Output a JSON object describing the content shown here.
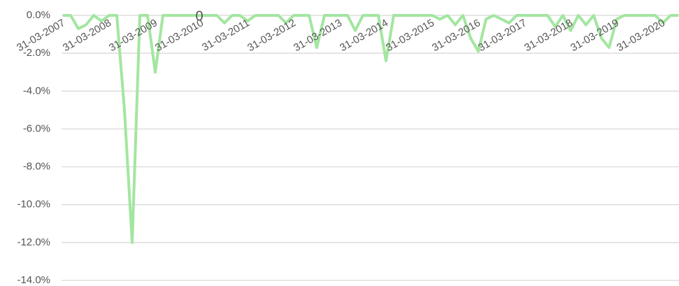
{
  "chart_data": {
    "type": "line",
    "annotation": "0",
    "categories": [
      "31-03-2007",
      null,
      null,
      null,
      null,
      null,
      "31-03-2008",
      null,
      null,
      null,
      null,
      null,
      "31-03-2009",
      null,
      null,
      null,
      null,
      null,
      "31-03-2010",
      null,
      null,
      null,
      null,
      null,
      "31-03-2011",
      null,
      null,
      null,
      null,
      null,
      "31-03-2012",
      null,
      null,
      null,
      null,
      null,
      "31-03-2013",
      null,
      null,
      null,
      null,
      null,
      "31-03-2014",
      null,
      null,
      null,
      null,
      null,
      "31-03-2015",
      null,
      null,
      null,
      null,
      null,
      "31-03-2016",
      null,
      null,
      null,
      null,
      null,
      "31-03-2017",
      null,
      null,
      null,
      null,
      null,
      "31-03-2018",
      null,
      null,
      null,
      null,
      null,
      "31-03-2019",
      null,
      null,
      null,
      null,
      null,
      "31-03-2020",
      null,
      null
    ],
    "series": [
      {
        "color": "#a3e6a0",
        "values": [
          0,
          0,
          -0.7,
          -0.5,
          0,
          -0.3,
          0,
          0,
          -5,
          -12,
          0,
          0,
          -3,
          0,
          0,
          0,
          0,
          0,
          0,
          0,
          0,
          -0.4,
          0,
          0,
          -0.3,
          0,
          0,
          0,
          0,
          -0.4,
          0,
          0,
          0,
          -1.7,
          0,
          0,
          0,
          0,
          -0.8,
          0,
          0,
          0,
          -2.4,
          0,
          0,
          0,
          0,
          0,
          0,
          -0.2,
          0,
          -0.5,
          0,
          -1.2,
          -1.9,
          -0.2,
          0,
          -0.2,
          -0.4,
          0,
          0,
          0,
          0,
          0,
          -0.6,
          0,
          -0.8,
          0,
          -0.5,
          0,
          -1.2,
          -1.7,
          -0.2,
          0,
          0,
          0,
          0,
          0,
          -0.4,
          0,
          0
        ]
      }
    ],
    "ylim": [
      -14,
      0
    ],
    "yticks": [
      {
        "value": 0,
        "label": "0.0%"
      },
      {
        "value": -2,
        "label": "-2.0%"
      },
      {
        "value": -4,
        "label": "-4.0%"
      },
      {
        "value": -6,
        "label": "-6.0%"
      },
      {
        "value": -8,
        "label": "-8.0%"
      },
      {
        "value": -10,
        "label": "-10.0%"
      },
      {
        "value": -12,
        "label": "-12.0%"
      },
      {
        "value": -14,
        "label": "-14.0%"
      }
    ],
    "grid": true
  }
}
